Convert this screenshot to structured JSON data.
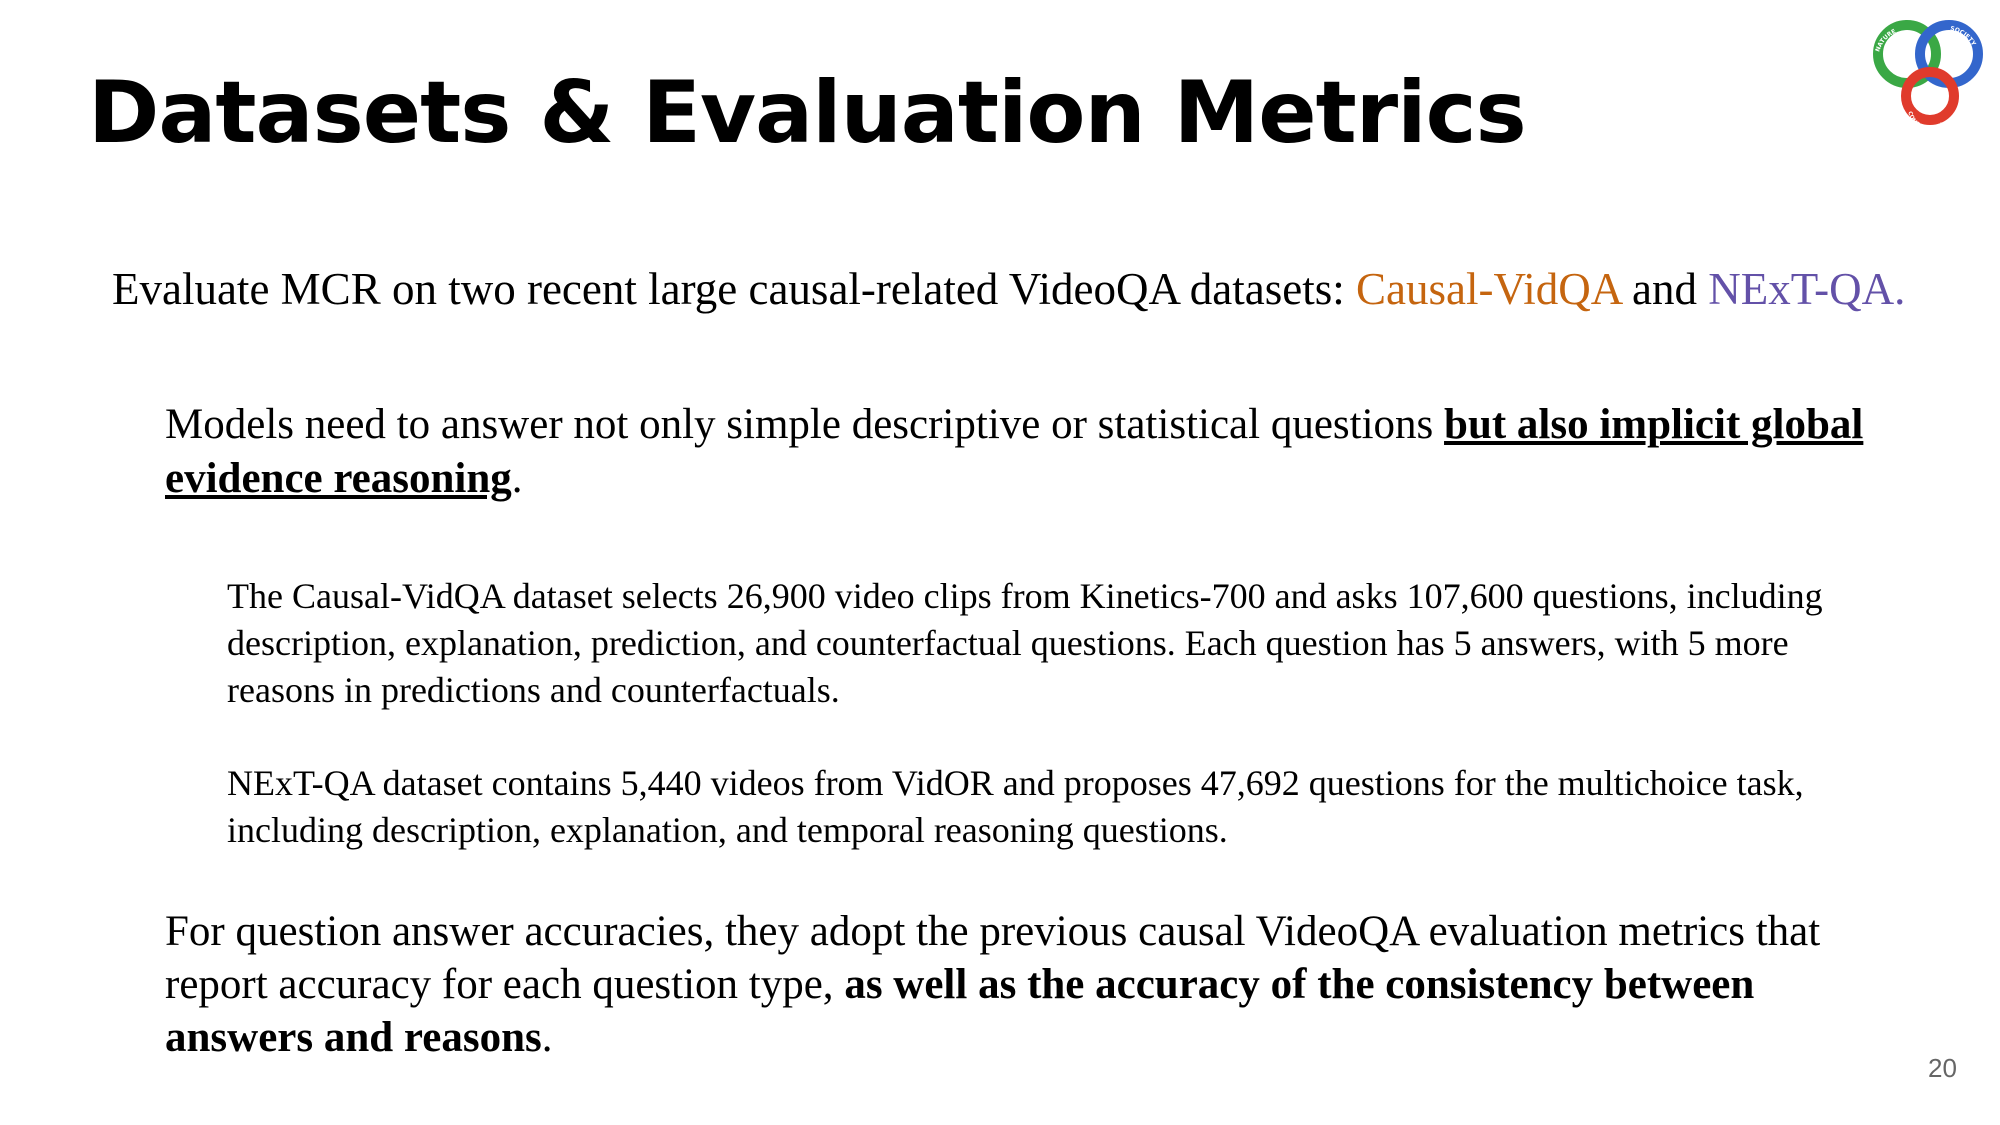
{
  "slide": {
    "title": "Datasets & Evaluation Metrics",
    "logo": {
      "icon": "nature-society-computation-logo",
      "ring_colors": [
        "#3aa845",
        "#3366cc",
        "#e03b2c"
      ],
      "text_top_left": "NATURE",
      "text_top_right": "SOCIETY",
      "text_bottom": "COMPUTATION"
    },
    "lead": {
      "text": "Evaluate MCR on two recent large causal-related VideoQA datasets: ",
      "dataset1": "Causal-VidQA",
      "dataset1_color": "#c5650f",
      "and": " and ",
      "dataset2": "NExT-QA.",
      "dataset2_color": "#6351a8"
    },
    "point1": {
      "text": "Models need to answer not only simple descriptive or statistical questions ",
      "emphasis": "but also implicit global evidence reasoning",
      "end": "."
    },
    "causal_vidqa_desc": "The Causal-VidQA dataset selects 26,900 video clips from Kinetics-700 and asks 107,600 questions, including description, explanation, prediction, and counterfactual questions. Each question has 5 answers, with 5 more reasons in predictions and counterfactuals.",
    "nextqa_desc": "NExT-QA dataset contains 5,440 videos from VidOR and proposes 47,692 questions for the multichoice task, including description, explanation, and temporal reasoning questions.",
    "point2": {
      "text": "For question answer accuracies, they adopt the previous causal VideoQA evaluation metrics that report accuracy for each question type, ",
      "emphasis": "as well as the accuracy of the consistency between answers and reasons",
      "end": "."
    },
    "page_number": "20"
  }
}
